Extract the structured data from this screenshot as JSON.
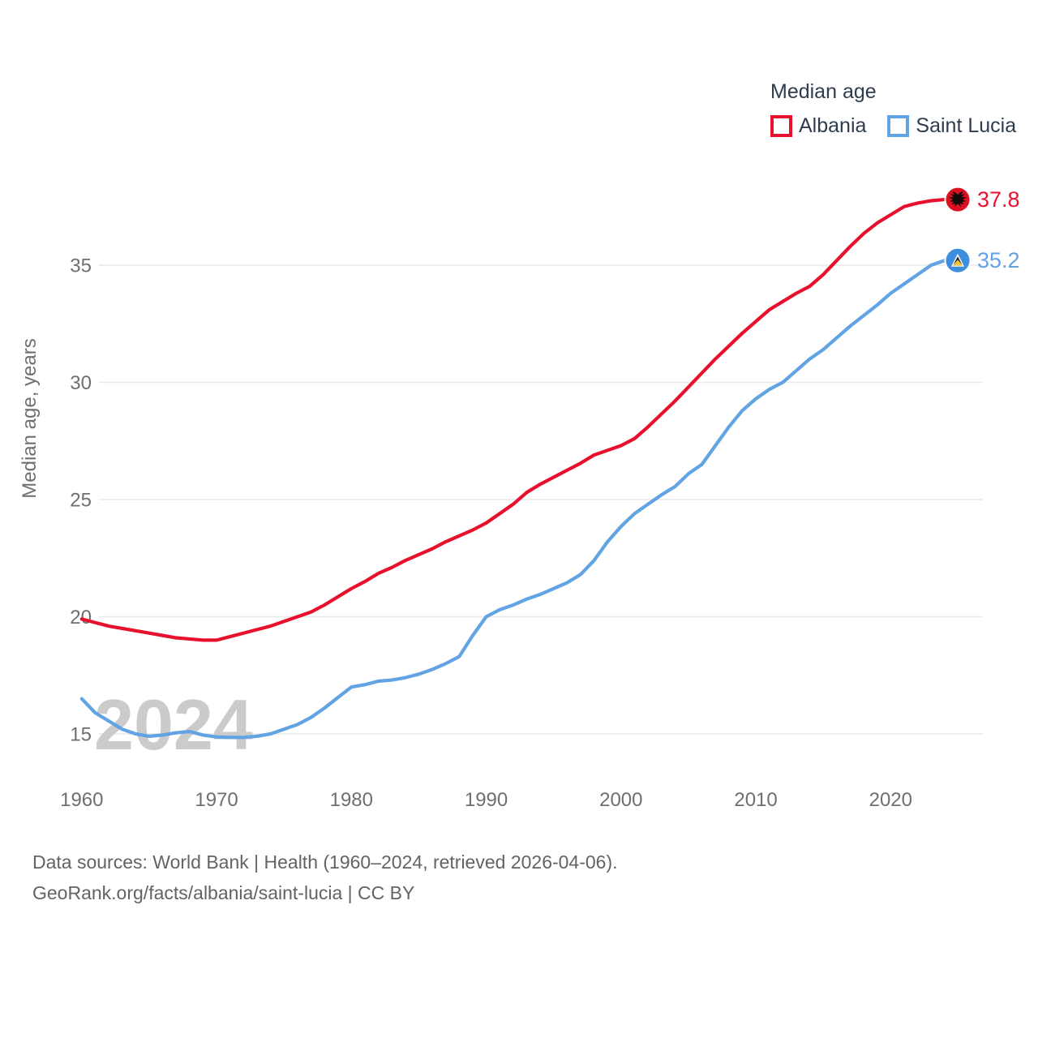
{
  "legend": {
    "title": "Median age",
    "items": [
      {
        "label": "Albania",
        "color": "#e8112d"
      },
      {
        "label": "Saint Lucia",
        "color": "#61a3e3"
      }
    ]
  },
  "watermark": "2024",
  "chart_data": {
    "type": "line",
    "title": "Median age",
    "xlabel": "",
    "ylabel": "Median age, years",
    "x_range": [
      1960,
      2024
    ],
    "ylim": [
      13.5,
      38.5
    ],
    "grid": "horizontal",
    "legend_position": "top-right",
    "y_ticks": [
      "15",
      "20",
      "25",
      "30",
      "35"
    ],
    "x_ticks": [
      "1960",
      "1970",
      "1980",
      "1990",
      "2000",
      "2010",
      "2020"
    ],
    "series": [
      {
        "name": "Albania",
        "color": "#e8112d",
        "marker_color": "#dc1020",
        "end_label": "37.8",
        "values": [
          19.9,
          19.75,
          19.6,
          19.5,
          19.4,
          19.3,
          19.2,
          19.1,
          19.05,
          19.0,
          19.0,
          19.15,
          19.3,
          19.45,
          19.6,
          19.8,
          20.0,
          20.2,
          20.5,
          20.85,
          21.2,
          21.5,
          21.85,
          22.1,
          22.4,
          22.65,
          22.9,
          23.2,
          23.45,
          23.7,
          24.0,
          24.4,
          24.8,
          25.3,
          25.65,
          25.95,
          26.25,
          26.55,
          26.9,
          27.1,
          27.3,
          27.6,
          28.1,
          28.65,
          29.2,
          29.8,
          30.4,
          31.0,
          31.55,
          32.1,
          32.6,
          33.1,
          33.45,
          33.8,
          34.1,
          34.6,
          35.2,
          35.8,
          36.35,
          36.8,
          37.15,
          37.5,
          37.65,
          37.75,
          37.8
        ]
      },
      {
        "name": "Saint Lucia",
        "color": "#61a3e3",
        "marker_color": "#3e8ee0",
        "end_label": "35.2",
        "values": [
          16.5,
          15.9,
          15.55,
          15.2,
          15.0,
          14.9,
          14.95,
          15.05,
          15.1,
          14.95,
          14.87,
          14.85,
          14.85,
          14.9,
          15.0,
          15.2,
          15.4,
          15.7,
          16.1,
          16.55,
          17.0,
          17.1,
          17.25,
          17.3,
          17.4,
          17.55,
          17.75,
          18.0,
          18.3,
          19.2,
          20.0,
          20.3,
          20.5,
          20.75,
          20.95,
          21.2,
          21.45,
          21.8,
          22.4,
          23.2,
          23.85,
          24.4,
          24.8,
          25.2,
          25.55,
          26.1,
          26.5,
          27.3,
          28.1,
          28.8,
          29.3,
          29.7,
          30.0,
          30.5,
          31.0,
          31.4,
          31.9,
          32.4,
          32.85,
          33.3,
          33.8,
          34.2,
          34.6,
          35.0,
          35.2
        ]
      }
    ]
  },
  "footer": {
    "line1": "Data sources: World Bank | Health (1960–2024, retrieved 2026-04-06).",
    "line2": "GeoRank.org/facts/albania/saint-lucia | CC BY"
  }
}
